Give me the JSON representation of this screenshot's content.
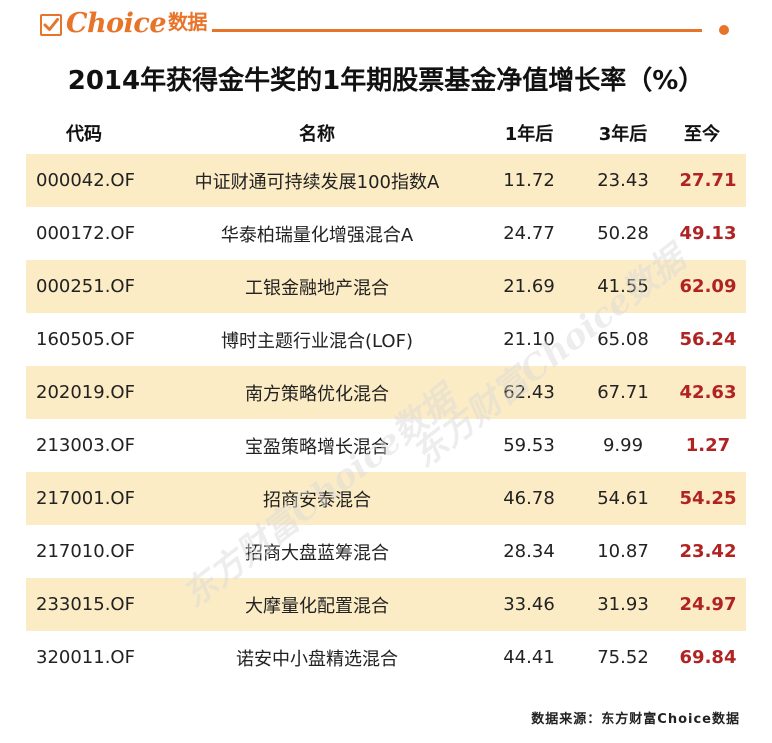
{
  "header": {
    "logo_text": "Choice",
    "logo_cn": "数据",
    "accent_color": "#e8742a"
  },
  "title": "2014年获得金牛奖的1年期股票基金净值增长率（%）",
  "table": {
    "columns": [
      "代码",
      "名称",
      "1年后",
      "3年后",
      "至今"
    ],
    "rows": [
      [
        "000042.OF",
        "中证财通可持续发展100指数A",
        "11.72",
        "23.43",
        "27.71"
      ],
      [
        "000172.OF",
        "华泰柏瑞量化增强混合A",
        "24.77",
        "50.28",
        "49.13"
      ],
      [
        "000251.OF",
        "工银金融地产混合",
        "21.69",
        "41.55",
        "62.09"
      ],
      [
        "160505.OF",
        "博时主题行业混合(LOF)",
        "21.10",
        "65.08",
        "56.24"
      ],
      [
        "202019.OF",
        "南方策略优化混合",
        "62.43",
        "67.71",
        "42.63"
      ],
      [
        "213003.OF",
        "宝盈策略增长混合",
        "59.53",
        "9.99",
        "1.27"
      ],
      [
        "217001.OF",
        "招商安泰混合",
        "46.78",
        "54.61",
        "54.25"
      ],
      [
        "217010.OF",
        "招商大盘蓝筹混合",
        "28.34",
        "10.87",
        "23.42"
      ],
      [
        "233015.OF",
        "大摩量化配置混合",
        "33.46",
        "31.93",
        "24.97"
      ],
      [
        "320011.OF",
        "诺安中小盘精选混合",
        "44.41",
        "75.52",
        "69.84"
      ]
    ],
    "stripe_color": "#fcecc5",
    "highlight_color": "#b02323"
  },
  "watermark": "东方财富Choice数据",
  "footer": "数据来源：东方财富Choice数据"
}
